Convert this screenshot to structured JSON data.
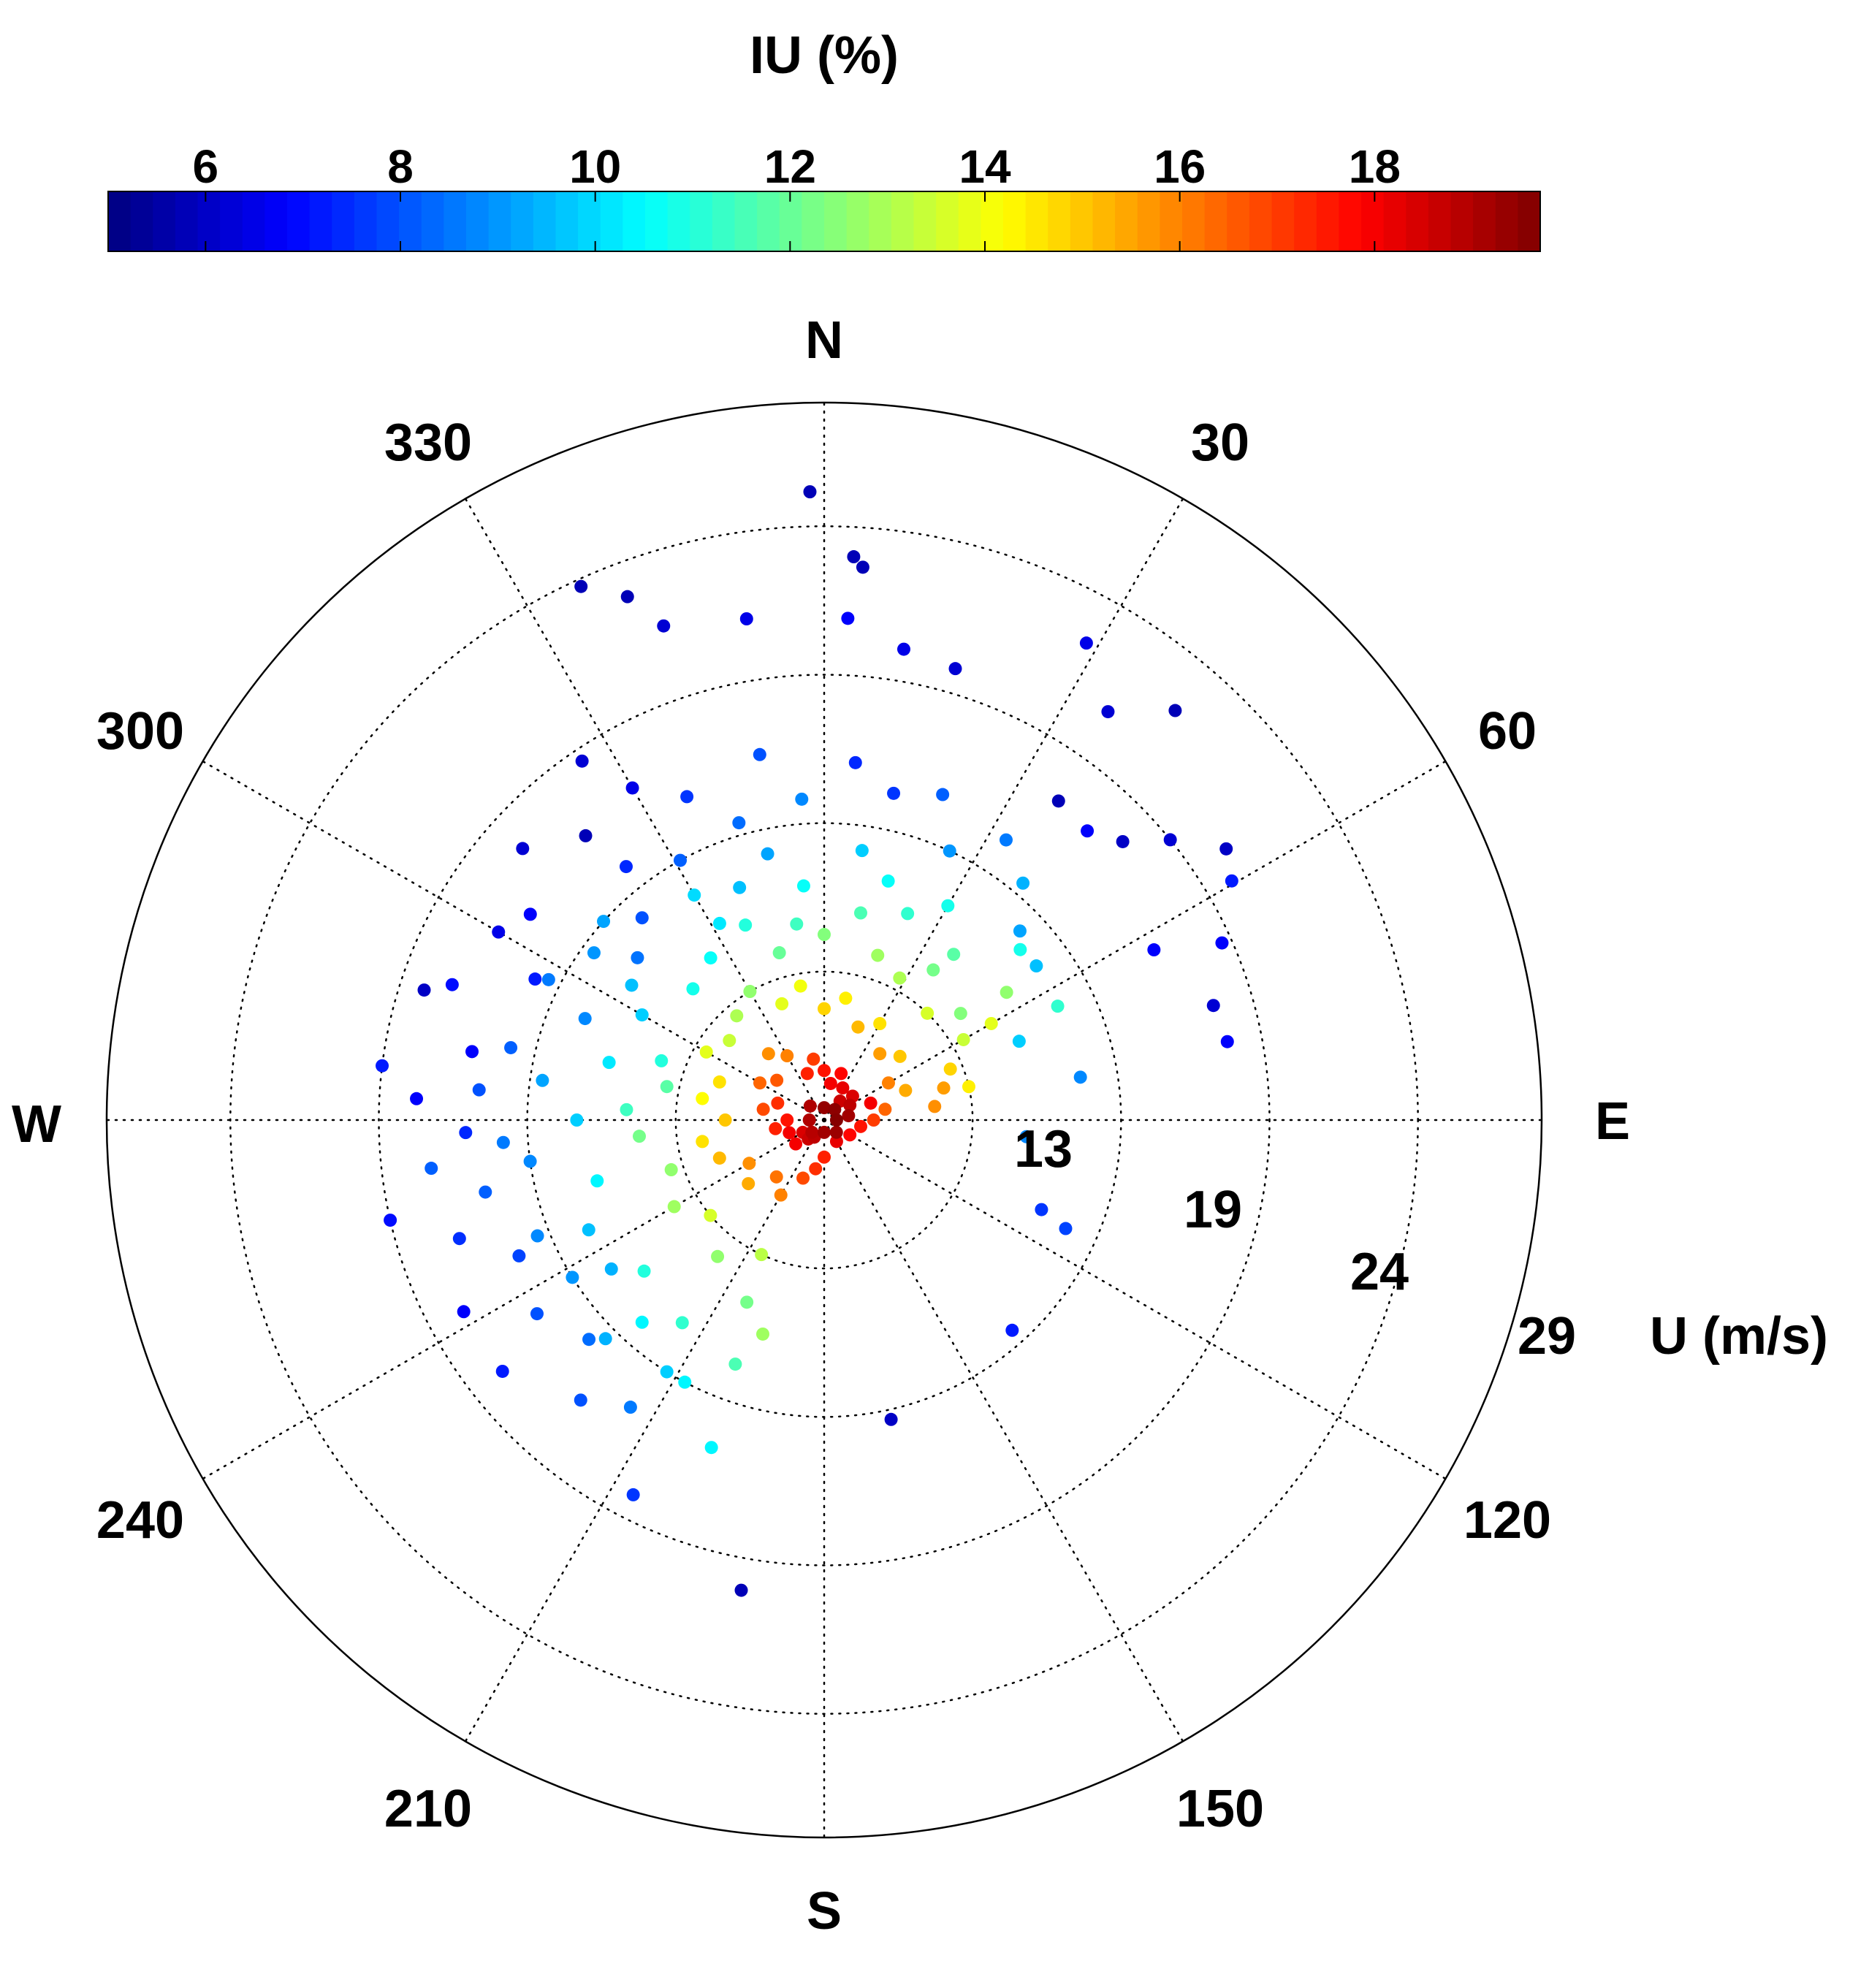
{
  "chart_data": {
    "type": "scatter",
    "coordinate_system": "polar",
    "colorbar": {
      "title": "IU (%)",
      "ticks": [
        6,
        8,
        10,
        12,
        14,
        16,
        18
      ],
      "range": [
        5,
        19.7
      ],
      "colormap": "jet"
    },
    "compass_labels": {
      "north": "N",
      "east": "E",
      "south": "S",
      "west": "W"
    },
    "angle_labels": [
      "30",
      "60",
      "120",
      "150",
      "210",
      "240",
      "300",
      "330"
    ],
    "angle_values": [
      30,
      60,
      120,
      150,
      210,
      240,
      300,
      330
    ],
    "radial_ticks": [
      13,
      19,
      24,
      29
    ],
    "radial_label": "U (m/s)",
    "radial_max": 29,
    "points": [
      [
        358.7,
        25.4,
        5.8
      ],
      [
        3.0,
        22.8,
        5.8
      ],
      [
        4.0,
        22.4,
        5.8
      ],
      [
        335.5,
        23.7,
        5.8
      ],
      [
        339.4,
        22.6,
        5.8
      ],
      [
        342.0,
        21.0,
        6.2
      ],
      [
        351.2,
        20.5,
        6.5
      ],
      [
        2.7,
        20.3,
        6.8
      ],
      [
        9.6,
        19.3,
        6.5
      ],
      [
        16.2,
        19.0,
        6.2
      ],
      [
        34.8,
        20.1,
        6.2
      ],
      [
        28.8,
        22.0,
        6.5
      ],
      [
        40.6,
        21.8,
        5.8
      ],
      [
        36.3,
        16.0,
        5.8
      ],
      [
        42.3,
        15.8,
        6.8
      ],
      [
        47.0,
        16.5,
        6.0
      ],
      [
        51.0,
        18.0,
        6.2
      ],
      [
        56.0,
        19.6,
        6.0
      ],
      [
        59.6,
        19.1,
        7.2
      ],
      [
        62.7,
        15.0,
        6.8
      ],
      [
        66.0,
        17.6,
        6.8
      ],
      [
        73.6,
        16.4,
        6.2
      ],
      [
        79.0,
        16.6,
        6.8
      ],
      [
        80.5,
        10.5,
        8.8
      ],
      [
        94.7,
        8.2,
        8.8
      ],
      [
        112.4,
        9.5,
        7.6
      ],
      [
        114.2,
        10.7,
        7.8
      ],
      [
        138.2,
        11.4,
        7.2
      ],
      [
        167.4,
        12.4,
        6.0
      ],
      [
        54.0,
        10.6,
        9.6
      ],
      [
        49.0,
        10.5,
        10.8
      ],
      [
        68.0,
        8.5,
        9.8
      ],
      [
        326.0,
        17.5,
        6.2
      ],
      [
        330.0,
        15.5,
        6.5
      ],
      [
        320.0,
        15.0,
        5.8
      ],
      [
        312.0,
        16.4,
        6.2
      ],
      [
        305.0,
        14.5,
        6.8
      ],
      [
        300.0,
        15.2,
        6.5
      ],
      [
        296.0,
        13.0,
        7.2
      ],
      [
        290.0,
        16.0,
        7.0
      ],
      [
        288.0,
        17.0,
        6.0
      ],
      [
        281.0,
        14.5,
        6.8
      ],
      [
        277.0,
        18.0,
        7.2
      ],
      [
        273.0,
        16.5,
        6.8
      ],
      [
        268.0,
        14.5,
        7.4
      ],
      [
        263.0,
        16.0,
        8.2
      ],
      [
        257.0,
        18.0,
        7.0
      ],
      [
        252.0,
        15.5,
        7.5
      ],
      [
        246.0,
        13.5,
        7.8
      ],
      [
        242.0,
        16.5,
        6.8
      ],
      [
        236.0,
        14.0,
        8.0
      ],
      [
        232.0,
        16.5,
        7.2
      ],
      [
        227.0,
        13.0,
        8.4
      ],
      [
        221.0,
        15.0,
        8.0
      ],
      [
        214.0,
        14.0,
        8.6
      ],
      [
        207.0,
        17.0,
        7.6
      ],
      [
        199.0,
        14.0,
        10.4
      ],
      [
        190.0,
        19.3,
        5.8
      ],
      [
        311.0,
        10.0,
        8.5
      ],
      [
        318.0,
        11.0,
        8.0
      ],
      [
        322.0,
        13.0,
        7.4
      ],
      [
        331.0,
        12.0,
        8.2
      ],
      [
        337.0,
        14.2,
        7.6
      ],
      [
        344.0,
        12.5,
        8.4
      ],
      [
        350.0,
        15.0,
        8.0
      ],
      [
        356.0,
        13.0,
        8.8
      ],
      [
        5.0,
        14.5,
        7.4
      ],
      [
        12.0,
        13.5,
        7.6
      ],
      [
        20.0,
        14.0,
        8.2
      ],
      [
        25.0,
        12.0,
        9.0
      ],
      [
        33.0,
        13.5,
        8.6
      ],
      [
        40.0,
        12.5,
        9.4
      ],
      [
        46.0,
        11.0,
        9.2
      ],
      [
        300.0,
        8.5,
        9.8
      ],
      [
        305.0,
        9.5,
        9.6
      ],
      [
        293.0,
        10.5,
        8.8
      ],
      [
        285.0,
        9.0,
        10.2
      ],
      [
        278.0,
        11.5,
        9.2
      ],
      [
        270.0,
        10.0,
        9.8
      ],
      [
        262.0,
        12.0,
        8.8
      ],
      [
        255.0,
        9.5,
        10.4
      ],
      [
        245.0,
        10.5,
        9.6
      ],
      [
        238.0,
        12.0,
        9.0
      ],
      [
        230.0,
        9.5,
        11.0
      ],
      [
        222.0,
        11.0,
        10.4
      ],
      [
        215.0,
        10.0,
        11.2
      ],
      [
        208.0,
        12.0,
        10.4
      ],
      [
        200.0,
        10.5,
        11.6
      ],
      [
        340.0,
        10.0,
        9.6
      ],
      [
        348.0,
        11.0,
        9.2
      ],
      [
        355.0,
        9.5,
        10.6
      ],
      [
        8.0,
        11.0,
        9.8
      ],
      [
        15.0,
        10.0,
        10.6
      ],
      [
        22.0,
        9.0,
        11.2
      ],
      [
        30.0,
        10.0,
        10.8
      ],
      [
        38.0,
        8.5,
        11.8
      ],
      [
        315.0,
        7.5,
        10.8
      ],
      [
        325.0,
        8.0,
        10.6
      ],
      [
        332.0,
        9.0,
        10.2
      ],
      [
        290.0,
        7.0,
        11.0
      ],
      [
        282.0,
        6.5,
        11.8
      ],
      [
        273.0,
        8.0,
        11.4
      ],
      [
        265.0,
        7.5,
        12.2
      ],
      [
        252.0,
        6.5,
        12.6
      ],
      [
        240.0,
        7.0,
        12.8
      ],
      [
        230.0,
        6.0,
        13.6
      ],
      [
        218.0,
        7.0,
        12.6
      ],
      [
        205.0,
        6.0,
        13.2
      ],
      [
        345.0,
        7.0,
        12.0
      ],
      [
        352.0,
        8.0,
        11.4
      ],
      [
        0.0,
        7.5,
        12.4
      ],
      [
        10.0,
        8.5,
        11.6
      ],
      [
        18.0,
        7.0,
        12.8
      ],
      [
        28.0,
        6.5,
        13.0
      ],
      [
        36.0,
        7.5,
        12.2
      ],
      [
        44.0,
        6.0,
        13.6
      ],
      [
        52.0,
        7.0,
        12.4
      ],
      [
        60.0,
        6.5,
        13.4
      ],
      [
        310.0,
        5.0,
        13.4
      ],
      [
        320.0,
        5.5,
        13.0
      ],
      [
        330.0,
        6.0,
        12.6
      ],
      [
        300.0,
        5.5,
        13.8
      ],
      [
        290.0,
        4.5,
        14.6
      ],
      [
        280.0,
        5.0,
        14.2
      ],
      [
        270.0,
        4.0,
        15.0
      ],
      [
        260.0,
        5.0,
        14.6
      ],
      [
        250.0,
        4.5,
        15.2
      ],
      [
        240.0,
        3.5,
        15.8
      ],
      [
        230.0,
        4.0,
        15.4
      ],
      [
        220.0,
        3.0,
        16.2
      ],
      [
        210.0,
        3.5,
        16.0
      ],
      [
        200.0,
        2.5,
        16.8
      ],
      [
        340.0,
        5.0,
        13.8
      ],
      [
        350.0,
        5.5,
        14.0
      ],
      [
        0.0,
        4.5,
        14.8
      ],
      [
        10.0,
        5.0,
        14.4
      ],
      [
        20.0,
        4.0,
        15.2
      ],
      [
        30.0,
        4.5,
        14.6
      ],
      [
        40.0,
        3.5,
        15.6
      ],
      [
        50.0,
        4.0,
        15.0
      ],
      [
        60.0,
        3.0,
        16.0
      ],
      [
        70.0,
        3.5,
        15.4
      ],
      [
        80.0,
        2.5,
        16.4
      ],
      [
        90.0,
        2.0,
        17.0
      ],
      [
        100.0,
        1.5,
        17.6
      ],
      [
        120.0,
        1.2,
        17.8
      ],
      [
        150.0,
        1.0,
        18.2
      ],
      [
        180.0,
        1.5,
        17.4
      ],
      [
        190.0,
        2.0,
        17.2
      ],
      [
        330.0,
        3.0,
        16.0
      ],
      [
        320.0,
        3.5,
        15.8
      ],
      [
        310.0,
        2.5,
        16.6
      ],
      [
        300.0,
        3.0,
        16.4
      ],
      [
        290.0,
        2.0,
        17.2
      ],
      [
        280.0,
        2.5,
        16.8
      ],
      [
        270.0,
        1.5,
        17.6
      ],
      [
        260.0,
        2.0,
        17.4
      ],
      [
        250.0,
        1.5,
        18.0
      ],
      [
        240.0,
        1.0,
        18.4
      ],
      [
        230.0,
        1.5,
        18.0
      ],
      [
        220.0,
        1.0,
        18.6
      ],
      [
        210.0,
        0.8,
        18.8
      ],
      [
        340.0,
        2.0,
        17.4
      ],
      [
        350.0,
        2.5,
        17.0
      ],
      [
        0.0,
        2.0,
        17.6
      ],
      [
        10.0,
        1.5,
        18.0
      ],
      [
        20.0,
        2.0,
        17.8
      ],
      [
        30.0,
        1.5,
        18.2
      ],
      [
        40.0,
        1.0,
        18.6
      ],
      [
        50.0,
        1.5,
        18.4
      ],
      [
        60.0,
        1.2,
        18.8
      ],
      [
        70.0,
        2.0,
        18.0
      ],
      [
        80.0,
        1.0,
        19.2
      ],
      [
        0.0,
        0.5,
        19.4
      ],
      [
        90.0,
        0.5,
        19.6
      ],
      [
        180.0,
        0.5,
        19.2
      ],
      [
        270.0,
        0.6,
        19.0
      ],
      [
        45.0,
        0.6,
        19.5
      ],
      [
        315.0,
        0.8,
        19.0
      ],
      [
        135.0,
        0.7,
        19.3
      ],
      [
        225.0,
        0.7,
        18.9
      ],
      [
        60.0,
        7.8,
        13.8
      ],
      [
        55.0,
        9.0,
        12.6
      ],
      [
        64.0,
        10.5,
        11.2
      ],
      [
        68.0,
        5.5,
        14.8
      ],
      [
        75.0,
        5.0,
        15.6
      ],
      [
        77.0,
        6.0,
        14.4
      ],
      [
        83.0,
        4.5,
        15.8
      ],
      [
        330.0,
        10.5,
        10.0
      ],
      [
        338.0,
        8.5,
        11.0
      ],
      [
        312.0,
        12.0,
        9.2
      ],
      [
        306.0,
        11.5,
        9.0
      ],
      [
        297.0,
        12.5,
        8.6
      ],
      [
        283.0,
        13.0,
        8.2
      ],
      [
        275.0,
        14.0,
        8.0
      ],
      [
        266.0,
        13.0,
        8.6
      ],
      [
        258.0,
        14.0,
        8.2
      ],
      [
        248.0,
        12.5,
        8.8
      ],
      [
        235.0,
        10.5,
        9.4
      ],
      [
        225.0,
        12.5,
        9.4
      ],
      [
        212.0,
        12.0,
        9.8
      ],
      [
        203.0,
        8.0,
        12.2
      ],
      [
        196.0,
        9.0,
        12.8
      ]
    ]
  }
}
